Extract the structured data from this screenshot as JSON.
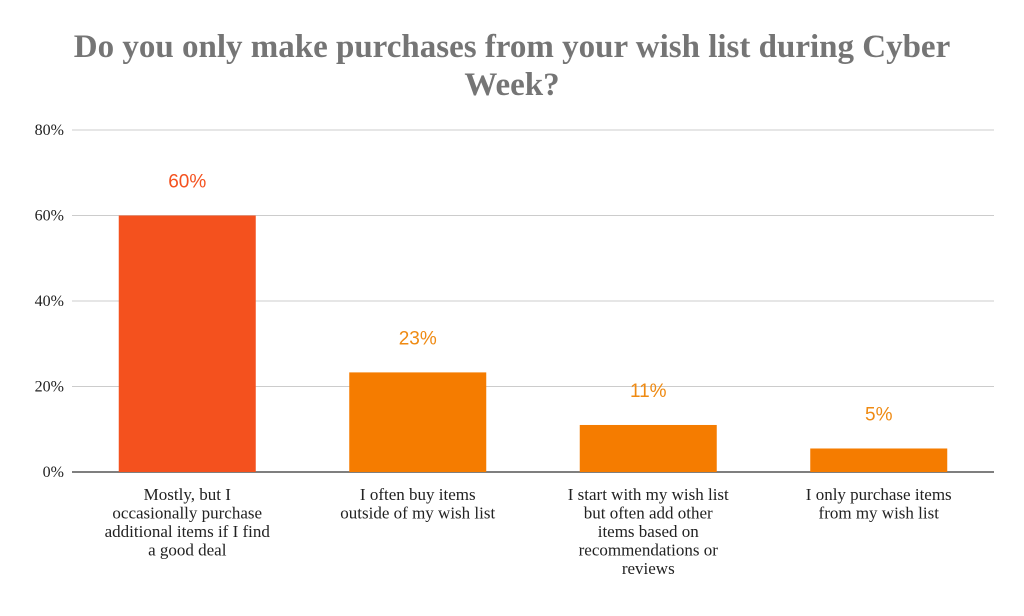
{
  "chart_data": {
    "type": "bar",
    "title_lines": [
      "Do you only make purchases from your wish list during Cyber",
      "Week?"
    ],
    "categories": [
      [
        "Mostly, but I",
        "occasionally purchase",
        "additional items if I find",
        "a good deal"
      ],
      [
        "I often buy items",
        "outside of my wish list"
      ],
      [
        "I start with my wish list",
        "but often add other",
        "items based on",
        "recommendations or",
        "reviews"
      ],
      [
        "I only purchase items",
        "from my wish list"
      ]
    ],
    "values": [
      60,
      23.3,
      11,
      5.5
    ],
    "data_labels": [
      "60%",
      "23%",
      "11%",
      "5%"
    ],
    "bar_colors": [
      "#f4511e",
      "#f57c00",
      "#f57c00",
      "#f57c00"
    ],
    "label_colors": [
      "#f4511e",
      "#ef8a12",
      "#ef8a12",
      "#ef8a12"
    ],
    "ylim": [
      0,
      80
    ],
    "yticks": [
      0,
      20,
      40,
      60,
      80
    ],
    "ytick_labels": [
      "0%",
      "20%",
      "40%",
      "60%",
      "80%"
    ],
    "grid": true,
    "legend": "none"
  }
}
